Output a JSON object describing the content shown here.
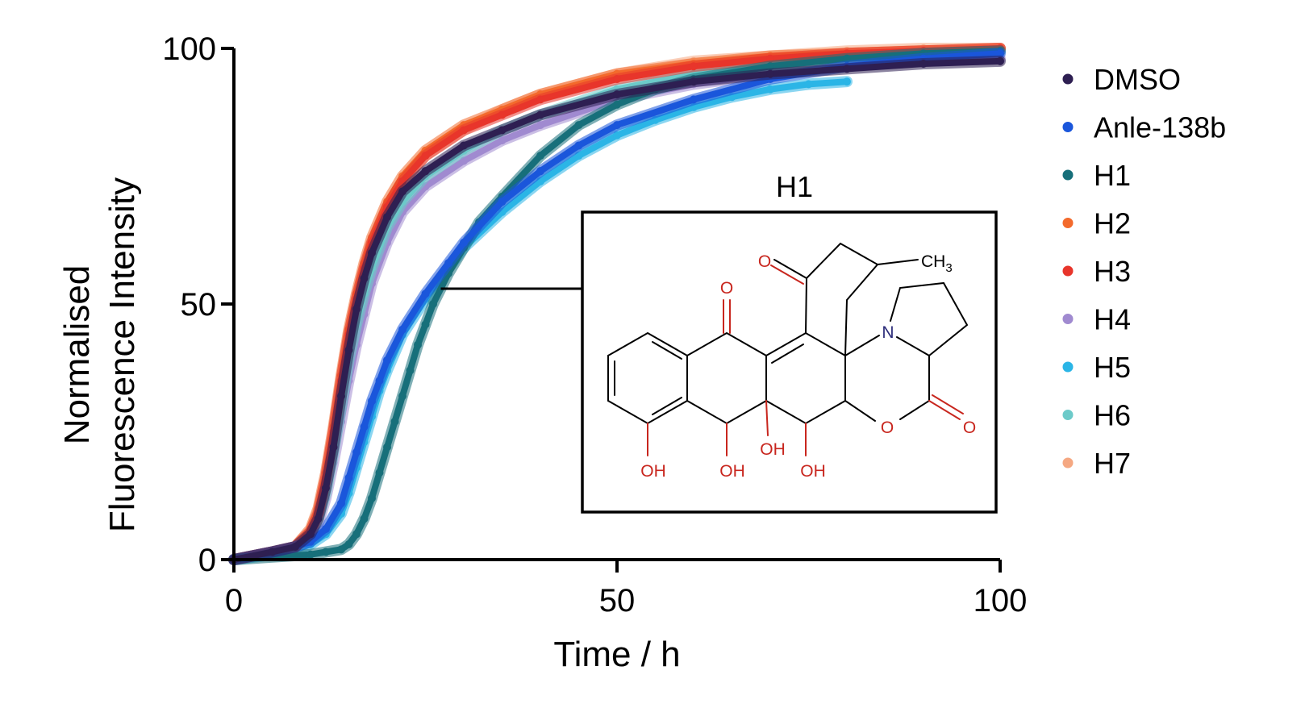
{
  "chart_data": {
    "type": "line",
    "xlabel": "Time / h",
    "ylabel": "Normalised\nFluorescence Intensity",
    "xlim": [
      0,
      100
    ],
    "ylim": [
      0,
      100
    ],
    "xticks": [
      0,
      50,
      100
    ],
    "yticks": [
      0,
      50,
      100
    ],
    "grid": false,
    "legend_position": "right",
    "series": [
      {
        "name": "DMSO",
        "color": "#2e1f52",
        "x": [
          0,
          5,
          8,
          10,
          11,
          12,
          13,
          14,
          15,
          16,
          17,
          18,
          20,
          22,
          25,
          30,
          35,
          40,
          50,
          60,
          70,
          80,
          90,
          100
        ],
        "y": [
          0,
          1.5,
          2.5,
          5,
          8,
          14,
          22,
          32,
          41,
          49,
          55,
          60,
          67,
          72,
          76,
          81,
          84,
          87,
          91,
          93.5,
          95,
          96,
          97,
          97.5
        ]
      },
      {
        "name": "Anle-138b",
        "color": "#1a56db",
        "x": [
          0,
          5,
          8,
          10,
          12,
          14,
          15,
          16,
          17,
          18,
          19,
          20,
          22,
          25,
          28,
          30,
          35,
          40,
          45,
          50,
          60,
          70,
          80,
          90,
          100
        ],
        "y": [
          0,
          1.5,
          2.5,
          3.5,
          6,
          11,
          16,
          21,
          26,
          31,
          35,
          39,
          45,
          52,
          58,
          62,
          70,
          76,
          81,
          85,
          90,
          94,
          96.5,
          98,
          99
        ]
      },
      {
        "name": "H1",
        "color": "#176f7a",
        "x": [
          0,
          5,
          10,
          12,
          14,
          15,
          16,
          17,
          18,
          19,
          20,
          21,
          22,
          23,
          24,
          25,
          26,
          28,
          30,
          32,
          35,
          40,
          45,
          50,
          55,
          60,
          70,
          80,
          90,
          100
        ],
        "y": [
          0,
          0.5,
          1,
          1.5,
          2,
          3,
          5,
          8,
          12,
          17,
          22,
          27,
          32,
          37,
          42,
          46,
          50,
          56,
          61,
          66,
          71,
          79,
          85,
          89,
          92,
          94,
          96.5,
          98,
          99,
          99.5
        ]
      },
      {
        "name": "H2",
        "color": "#f36a2c",
        "x": [
          0,
          5,
          8,
          10,
          11,
          12,
          13,
          14,
          15,
          16,
          17,
          18,
          20,
          22,
          25,
          30,
          35,
          40,
          50,
          60,
          70,
          80,
          90,
          100
        ],
        "y": [
          0,
          1.5,
          2.5,
          6,
          10,
          17,
          26,
          36,
          45,
          52,
          58,
          63,
          70,
          75,
          80,
          85,
          88,
          91,
          95,
          97,
          98.5,
          99,
          99.5,
          100
        ]
      },
      {
        "name": "H3",
        "color": "#e8352b",
        "x": [
          0,
          5,
          8,
          10,
          11,
          12,
          13,
          14,
          15,
          16,
          17,
          18,
          20,
          22,
          25,
          30,
          35,
          40,
          50,
          60,
          70,
          80,
          90,
          100
        ],
        "y": [
          0,
          1.5,
          2.5,
          5.5,
          9,
          16,
          25,
          35,
          44,
          51,
          57,
          62,
          69,
          74,
          79,
          84,
          87,
          90,
          94,
          96.5,
          98,
          99,
          99.5,
          100
        ]
      },
      {
        "name": "H4",
        "color": "#a08ad0",
        "x": [
          0,
          5,
          8,
          10,
          11,
          12,
          13,
          14,
          15,
          16,
          17,
          18,
          20,
          22,
          25,
          30,
          35,
          40,
          50,
          60,
          70,
          80,
          90,
          100
        ],
        "y": [
          0,
          1.2,
          2,
          4,
          7,
          12,
          19,
          27,
          35,
          42,
          48,
          54,
          62,
          68,
          73,
          78,
          82,
          85,
          90,
          93,
          95,
          96.5,
          97.5,
          98
        ]
      },
      {
        "name": "H5",
        "color": "#2bb5e6",
        "x": [
          0,
          5,
          8,
          10,
          12,
          14,
          15,
          16,
          17,
          18,
          19,
          20,
          22,
          25,
          28,
          30,
          35,
          40,
          45,
          50,
          55,
          60,
          65,
          70,
          75,
          80
        ],
        "y": [
          0,
          1,
          2,
          3,
          5,
          9,
          13,
          18,
          23,
          28,
          33,
          37,
          44,
          51,
          57,
          61,
          68,
          74,
          79,
          83,
          86,
          88.5,
          90.5,
          92,
          93,
          93.5
        ]
      },
      {
        "name": "H6",
        "color": "#6ccac9",
        "x": [
          0,
          5,
          8,
          10,
          11,
          12,
          13,
          14,
          15,
          16,
          17,
          18,
          20,
          22,
          25,
          30,
          35,
          40,
          50,
          60,
          70,
          80,
          90,
          100
        ],
        "y": [
          0,
          1.3,
          2.2,
          4.5,
          8,
          13,
          21,
          30,
          39,
          46,
          52,
          57,
          65,
          70,
          75,
          80,
          84,
          87,
          92,
          95,
          97,
          98.5,
          99,
          99.5
        ]
      },
      {
        "name": "H7",
        "color": "#f5a882",
        "x": [
          0,
          5,
          8,
          10,
          11,
          12,
          13,
          14,
          15,
          16,
          17,
          18,
          20,
          22,
          25,
          30,
          35,
          40,
          50,
          60,
          70,
          80,
          90,
          100
        ],
        "y": [
          0,
          1.5,
          2.5,
          5.5,
          9.5,
          16,
          25,
          35,
          44,
          51,
          57,
          62,
          69,
          74,
          79,
          84,
          88,
          91,
          95,
          97.5,
          98.5,
          99.5,
          100,
          100
        ]
      }
    ]
  },
  "inset": {
    "title": "H1",
    "atoms": {
      "o_top_ketone": "O",
      "o_ketone": "O",
      "ch3": "CH",
      "ch3_sub": "3",
      "n": "N",
      "o_ring": "O",
      "o_lactone": "O",
      "oh1": "OH",
      "oh2": "OH",
      "oh3": "OH",
      "oh4": "OH"
    },
    "pointer_x": 27
  }
}
